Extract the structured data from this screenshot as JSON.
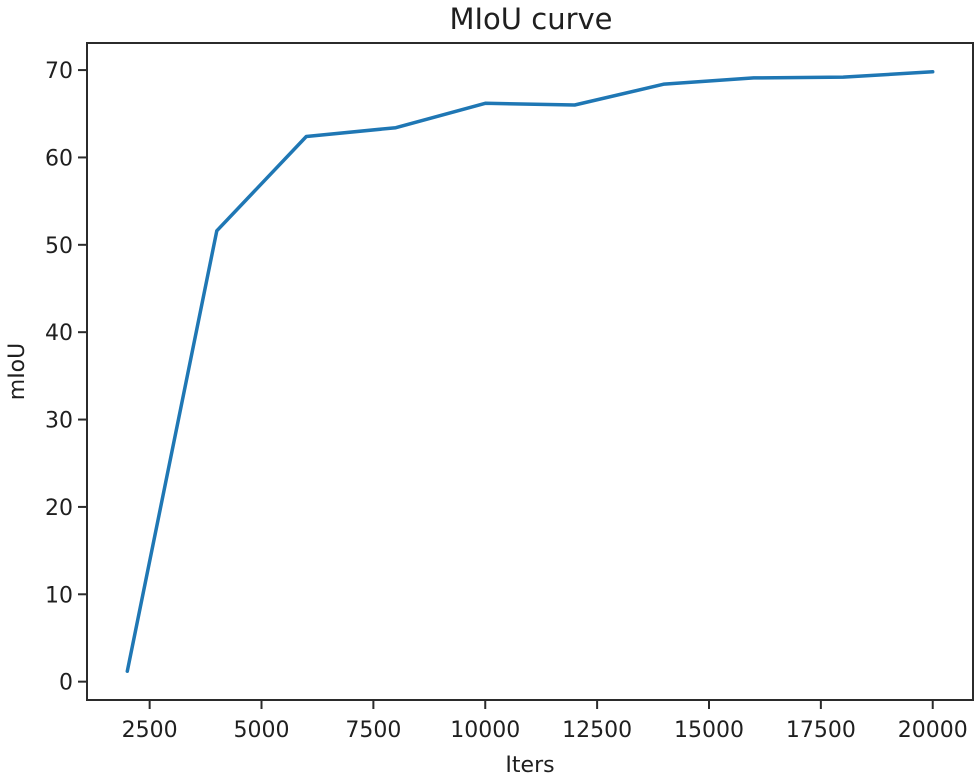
{
  "figure": {
    "title": "MIoU curve",
    "xlabel": "Iters",
    "ylabel": "mIoU"
  },
  "chart_data": {
    "type": "line",
    "title": "MIoU curve",
    "xlabel": "Iters",
    "ylabel": "mIoU",
    "x": [
      2000,
      4000,
      6000,
      8000,
      10000,
      12000,
      14000,
      16000,
      18000,
      20000
    ],
    "series": [
      {
        "name": "mIoU",
        "values": [
          1.2,
          51.6,
          62.4,
          63.4,
          66.2,
          66.0,
          68.4,
          69.1,
          69.2,
          69.8
        ],
        "color": "#1f77b4"
      }
    ],
    "xticks": [
      2500,
      5000,
      7500,
      10000,
      12500,
      15000,
      17500,
      20000
    ],
    "yticks": [
      0,
      10,
      20,
      30,
      40,
      50,
      60,
      70
    ],
    "xlim": [
      1100,
      20900
    ],
    "ylim": [
      -2.1,
      73.1
    ],
    "grid": false,
    "legend": "none",
    "background": "#ffffff",
    "axis_color": "#2b2b2b",
    "text_color": "#1f1f1f",
    "line_width": 3.5
  }
}
